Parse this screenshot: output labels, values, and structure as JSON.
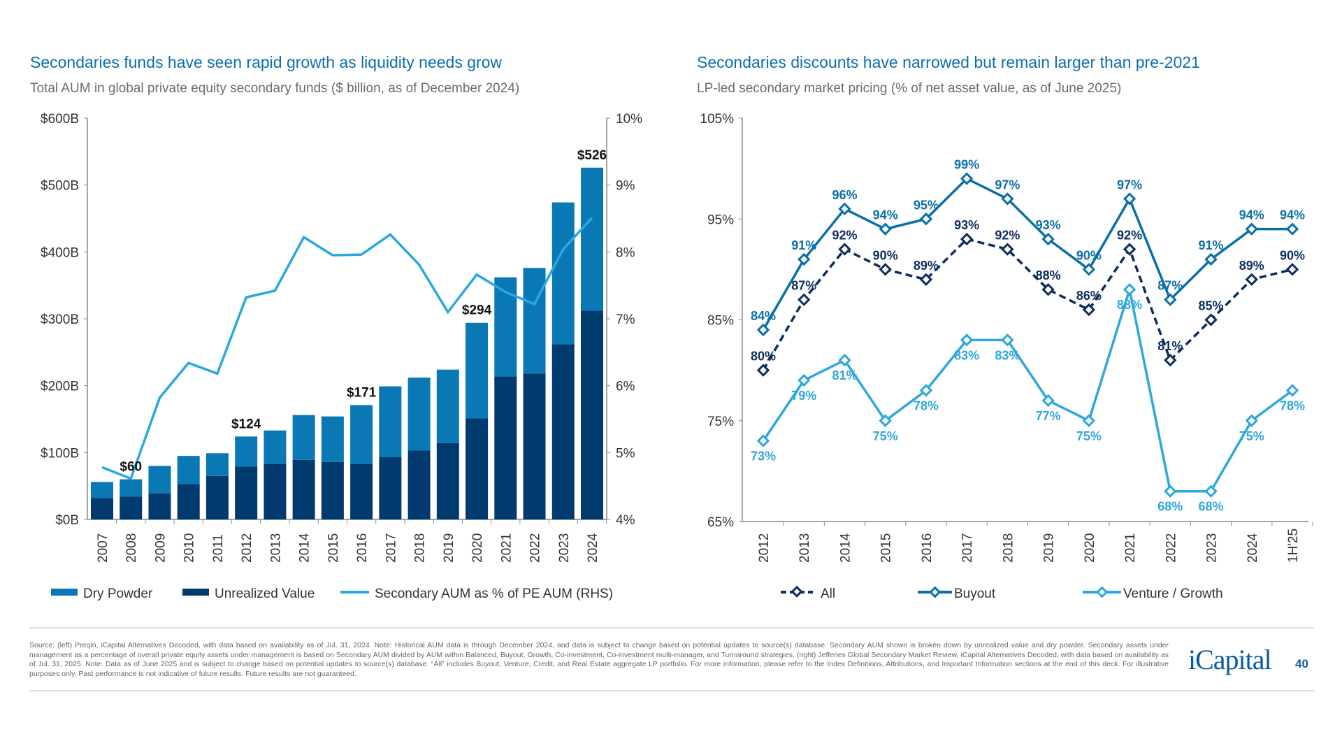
{
  "colors": {
    "title": "#0a6fb0",
    "dry_powder": "#0a78b4",
    "unrealized": "#003a6e",
    "pct_line": "#2aa8e0",
    "all": "#0d2d5e",
    "buyout": "#0a6fa8",
    "venture": "#2ea7dd"
  },
  "chart_data": [
    {
      "type": "bar",
      "stacked": true,
      "title": "Secondaries funds have seen rapid growth as liquidity needs grow",
      "subtitle": "Total AUM in global private equity secondary funds ($ billion, as of December 2024)",
      "categories": [
        "2007",
        "2008",
        "2009",
        "2010",
        "2011",
        "2012",
        "2013",
        "2014",
        "2015",
        "2016",
        "2017",
        "2018",
        "2019",
        "2020",
        "2021",
        "2022",
        "2023",
        "2024"
      ],
      "series": [
        {
          "name": "Unrealized Value",
          "values": [
            32,
            34,
            39,
            53,
            65,
            79,
            83,
            89,
            86,
            83,
            93,
            103,
            114,
            151,
            214,
            218,
            262,
            312
          ]
        },
        {
          "name": "Dry Powder",
          "values": [
            24,
            26,
            41,
            42,
            34,
            45,
            50,
            67,
            68,
            88,
            106,
            109,
            110,
            143,
            148,
            158,
            212,
            214
          ]
        }
      ],
      "line_series": {
        "name": "Secondary AUM as % of PE AUM (RHS)",
        "axis": "right",
        "values": [
          4.78,
          4.61,
          5.82,
          6.34,
          6.18,
          7.32,
          7.42,
          8.22,
          7.95,
          7.96,
          8.26,
          7.81,
          7.1,
          7.66,
          7.4,
          7.22,
          8.04,
          8.51
        ]
      },
      "annotations": [
        {
          "year": "2008",
          "text": "$60",
          "value": 60
        },
        {
          "year": "2012",
          "text": "$124",
          "value": 124
        },
        {
          "year": "2016",
          "text": "$171",
          "value": 171
        },
        {
          "year": "2020",
          "text": "$294",
          "value": 294
        },
        {
          "year": "2024",
          "text": "$526",
          "value": 526
        }
      ],
      "ylim": [
        0,
        600
      ],
      "yticks": [
        "$0B",
        "$100B",
        "$200B",
        "$300B",
        "$400B",
        "$500B",
        "$600B"
      ],
      "y2lim": [
        4,
        10
      ],
      "y2ticks": [
        "4%",
        "5%",
        "6%",
        "7%",
        "8%",
        "9%",
        "10%"
      ],
      "grid": false,
      "legend": "bottom",
      "legend_items": [
        "Dry Powder",
        "Unrealized Value",
        "Secondary AUM as % of PE AUM (RHS)"
      ]
    },
    {
      "type": "line",
      "title": "Secondaries discounts have narrowed but remain larger than pre-2021",
      "subtitle": "LP-led secondary market pricing (% of net asset value, as of June 2025)",
      "categories": [
        "2012",
        "2013",
        "2014",
        "2015",
        "2016",
        "2017",
        "2018",
        "2019",
        "2020",
        "2021",
        "2022",
        "2023",
        "2024",
        "1H'25"
      ],
      "series": [
        {
          "name": "All",
          "values": [
            80,
            87,
            92,
            90,
            89,
            93,
            92,
            88,
            86,
            92,
            81,
            85,
            89,
            90
          ],
          "style": "dashed"
        },
        {
          "name": "Buyout",
          "values": [
            84,
            91,
            96,
            94,
            95,
            99,
            97,
            93,
            90,
            97,
            87,
            91,
            94,
            94
          ],
          "style": "solid"
        },
        {
          "name": "Venture / Growth",
          "values": [
            73,
            79,
            81,
            75,
            78,
            83,
            83,
            77,
            75,
            88,
            68,
            68,
            75,
            78
          ],
          "style": "solid"
        }
      ],
      "ylim": [
        65,
        105
      ],
      "yticks": [
        "65%",
        "75%",
        "85%",
        "95%",
        "105%"
      ],
      "grid": false,
      "legend": "bottom",
      "legend_items": [
        "All",
        "Buyout",
        "Venture / Growth"
      ]
    }
  ],
  "footer": {
    "source": "Source: (left) Preqin, iCapital Alternatives Decoded, with data based on availability as of Jul. 31, 2024. Note: Historical AUM data is through December 2024, and data is subject to change based on potential updates to source(s) database. Secondary AUM shown is broken down by unrealized value and dry powder. Secondary assets under management as a percentage of overall private equity assets under management is based on Secondary AUM divided by AUM within Balanced, Buyout, Growth, Co-investment, Co-investment multi-manager, and Turnaround strategies. (right) Jefferies Global Secondary Market Review, iCapital Alternatives Decoded, with data based on availability as of Jul. 31, 2025. Note: Data as of June 2025 and is subject to change based on potential updates to source(s) database. “All” includes Buyout, Venture, Credit, and Real Estate aggregate LP portfolio. For more information, please refer to the Index Definitions, Attributions, and Important Information sections at the end of this deck. For illustrative purposes only. Past performance is not indicative of future results. Future results are not guaranteed.",
    "logo": "iCapital",
    "page_number": "40"
  }
}
